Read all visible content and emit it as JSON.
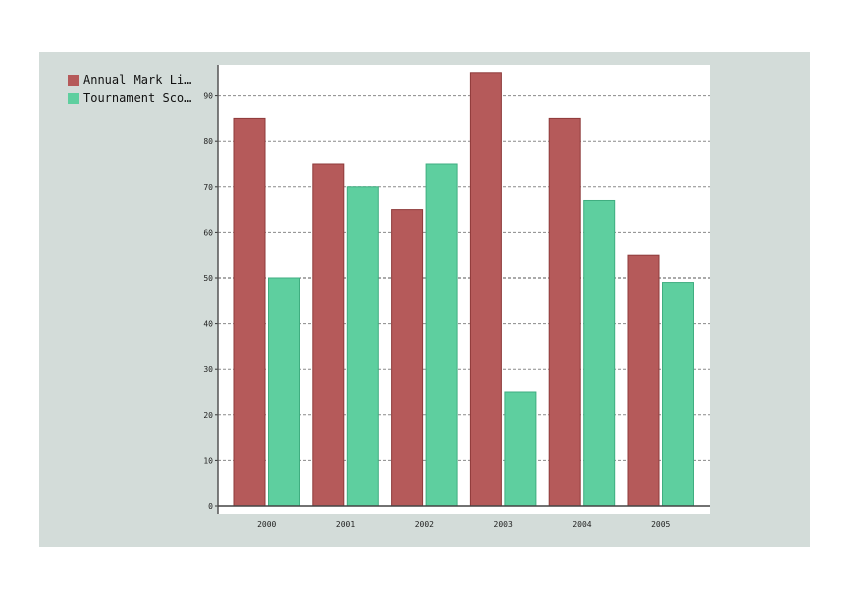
{
  "chart_data": {
    "type": "bar",
    "title": "",
    "xlabel": "",
    "ylabel": "",
    "categories": [
      "2000",
      "2001",
      "2002",
      "2003",
      "2004",
      "2005"
    ],
    "series": [
      {
        "name": "Annual Mark Li…",
        "color": "#b55a5a",
        "values": [
          85,
          75,
          65,
          95,
          85,
          55
        ]
      },
      {
        "name": "Tournament Sco…",
        "color": "#5ecf9f",
        "values": [
          50,
          70,
          75,
          25,
          67,
          49
        ]
      }
    ],
    "ylim": [
      0,
      95
    ],
    "yticks": [
      0,
      10,
      20,
      30,
      40,
      50,
      60,
      70,
      80,
      90
    ],
    "grid": true,
    "legend_position": "top-left"
  }
}
